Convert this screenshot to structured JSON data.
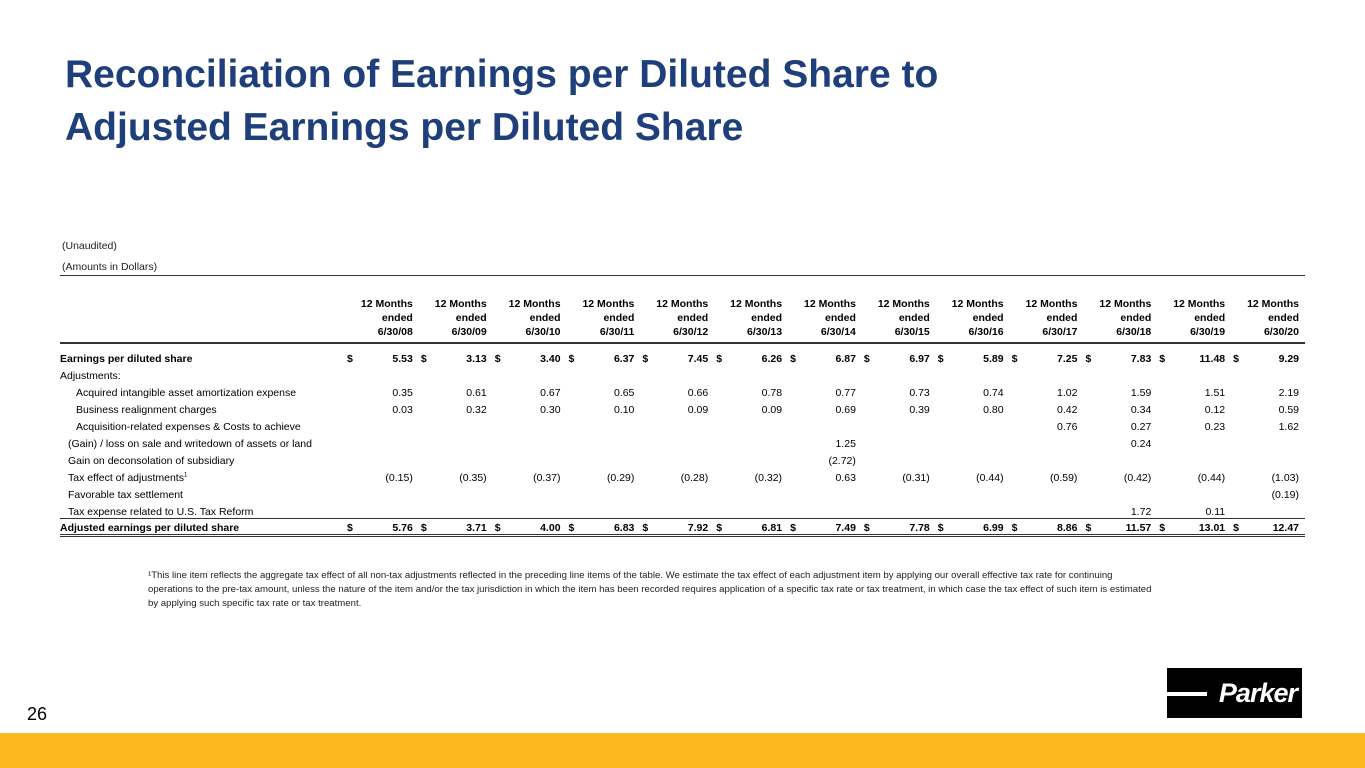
{
  "title": {
    "line1": "Reconciliation of Earnings per Diluted Share to",
    "line2": "Adjusted Earnings per Diluted Share"
  },
  "unaudited": "(Unaudited)",
  "amounts": "(Amounts in Dollars)",
  "columns": [
    {
      "l1": "12 Months",
      "l2": "ended",
      "l3": "6/30/08"
    },
    {
      "l1": "12 Months",
      "l2": "ended",
      "l3": "6/30/09"
    },
    {
      "l1": "12 Months",
      "l2": "ended",
      "l3": "6/30/10"
    },
    {
      "l1": "12 Months",
      "l2": "ended",
      "l3": "6/30/11"
    },
    {
      "l1": "12 Months",
      "l2": "ended",
      "l3": "6/30/12"
    },
    {
      "l1": "12 Months",
      "l2": "ended",
      "l3": "6/30/13"
    },
    {
      "l1": "12 Months",
      "l2": "ended",
      "l3": "6/30/14"
    },
    {
      "l1": "12 Months",
      "l2": "ended",
      "l3": "6/30/15"
    },
    {
      "l1": "12 Months",
      "l2": "ended",
      "l3": "6/30/16"
    },
    {
      "l1": "12 Months",
      "l2": "ended",
      "l3": "6/30/17"
    },
    {
      "l1": "12 Months",
      "l2": "ended",
      "l3": "6/30/18"
    },
    {
      "l1": "12 Months",
      "l2": "ended",
      "l3": "6/30/19"
    },
    {
      "l1": "12 Months",
      "l2": "ended",
      "l3": "6/30/20"
    }
  ],
  "currency": "$",
  "rows": [
    {
      "label": "Earnings per diluted share",
      "type": "bold",
      "dollar": true,
      "values": [
        "5.53",
        "3.13",
        "3.40",
        "6.37",
        "7.45",
        "6.26",
        "6.87",
        "6.97",
        "5.89",
        "7.25",
        "7.83",
        "11.48",
        "9.29"
      ]
    },
    {
      "label": "Adjustments:",
      "type": "plain",
      "values": [
        "",
        "",
        "",
        "",
        "",
        "",
        "",
        "",
        "",
        "",
        "",
        "",
        ""
      ]
    },
    {
      "label": "Acquired intangible asset amortization expense",
      "type": "ind",
      "values": [
        "0.35",
        "0.61",
        "0.67",
        "0.65",
        "0.66",
        "0.78",
        "0.77",
        "0.73",
        "0.74",
        "1.02",
        "1.59",
        "1.51",
        "2.19"
      ]
    },
    {
      "label": "Business realignment charges",
      "type": "ind",
      "values": [
        "0.03",
        "0.32",
        "0.30",
        "0.10",
        "0.09",
        "0.09",
        "0.69",
        "0.39",
        "0.80",
        "0.42",
        "0.34",
        "0.12",
        "0.59"
      ]
    },
    {
      "label": "Acquisition-related expenses & Costs to achieve",
      "type": "ind",
      "values": [
        "",
        "",
        "",
        "",
        "",
        "",
        "",
        "",
        "",
        "0.76",
        "0.27",
        "0.23",
        "1.62"
      ]
    },
    {
      "label": "(Gain) / loss on sale and writedown of assets or land",
      "type": "ind2",
      "values": [
        "",
        "",
        "",
        "",
        "",
        "",
        "1.25",
        "",
        "",
        "",
        "0.24",
        "",
        ""
      ]
    },
    {
      "label": "Gain on deconsolation of subsidiary",
      "type": "ind2",
      "values": [
        "",
        "",
        "",
        "",
        "",
        "",
        "(2.72)",
        "",
        "",
        "",
        "",
        "",
        ""
      ]
    },
    {
      "label": "Tax effect of adjustments",
      "sup": "1",
      "type": "ind2",
      "values": [
        "(0.15)",
        "(0.35)",
        "(0.37)",
        "(0.29)",
        "(0.28)",
        "(0.32)",
        "0.63",
        "(0.31)",
        "(0.44)",
        "(0.59)",
        "(0.42)",
        "(0.44)",
        "(1.03)"
      ]
    },
    {
      "label": "Favorable tax settlement",
      "type": "ind2",
      "values": [
        "",
        "",
        "",
        "",
        "",
        "",
        "",
        "",
        "",
        "",
        "",
        "",
        "(0.19)"
      ]
    },
    {
      "label": "Tax expense related to U.S. Tax Reform",
      "type": "ind2",
      "values": [
        "",
        "",
        "",
        "",
        "",
        "",
        "",
        "",
        "",
        "",
        "1.72",
        "0.11",
        ""
      ]
    },
    {
      "label": "Adjusted earnings per diluted share",
      "type": "adj",
      "dollar": true,
      "values": [
        "5.76",
        "3.71",
        "4.00",
        "6.83",
        "7.92",
        "6.81",
        "7.49",
        "7.78",
        "6.99",
        "8.86",
        "11.57",
        "13.01",
        "12.47"
      ]
    }
  ],
  "footnote": "¹This line item reflects the aggregate tax effect of all non-tax adjustments reflected in the preceding line items of the table. We estimate the tax effect of each adjustment item by applying our overall effective tax rate for continuing operations to the pre-tax amount, unless the nature of the item and/or the tax jurisdiction in which the item has been recorded requires application of a specific tax rate or tax treatment, in which case the tax effect of such item is estimated by applying such specific tax rate or tax treatment.",
  "page_number": "26",
  "logo": "Parker",
  "colors": {
    "title": "#1f3f7a",
    "bar": "#fdb71f"
  }
}
